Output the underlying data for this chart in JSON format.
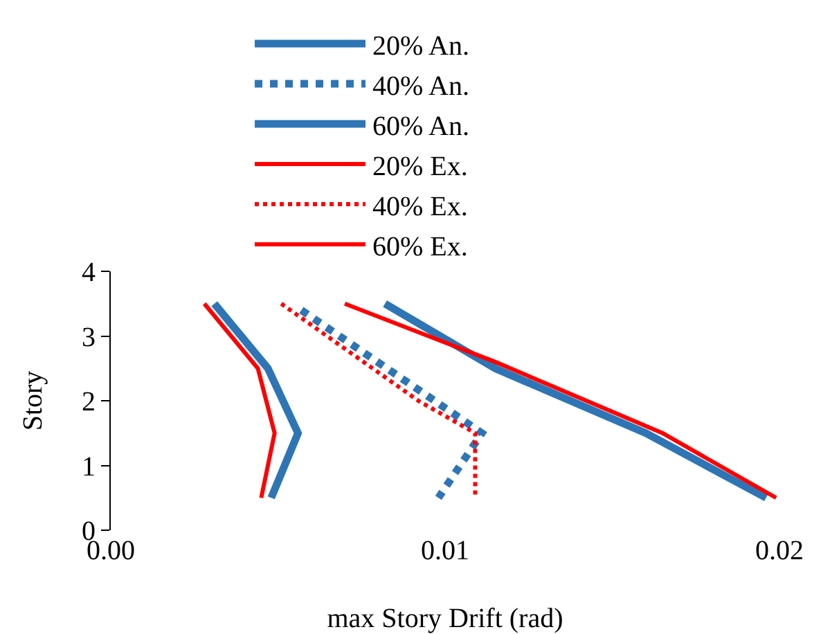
{
  "chart_data": {
    "type": "line",
    "xlabel": "max Story Drift (rad)",
    "ylabel": "Story",
    "xlim": [
      0,
      0.02
    ],
    "xticks": [
      {
        "value": 0,
        "label": "0.00"
      },
      {
        "value": 0.01,
        "label": "0.01"
      },
      {
        "value": 0.02,
        "label": "0.02"
      }
    ],
    "ylim": [
      0,
      4
    ],
    "yticks": [
      0,
      1,
      2,
      3,
      4
    ],
    "grid": false,
    "legend": "top",
    "marker": "none",
    "series": [
      {
        "name": "20% An.",
        "color": "#2e75b6",
        "line_style": "solid",
        "x": [
          0.0031,
          0.0047,
          0.0056,
          0.0048
        ],
        "values": [
          3.5,
          2.5,
          1.5,
          0.5
        ]
      },
      {
        "name": "40% An.",
        "color": "#2e75b6",
        "line_style": "dotted",
        "x": [
          0.0057,
          0.0094,
          0.0111,
          0.0098
        ],
        "values": [
          3.4,
          2.1,
          1.5,
          0.5
        ]
      },
      {
        "name": "60% An.",
        "color": "#2e75b6",
        "line_style": "solid",
        "x": [
          0.0082,
          0.0115,
          0.016,
          0.0196
        ],
        "values": [
          3.5,
          2.5,
          1.5,
          0.5
        ]
      },
      {
        "name": "20% Ex.",
        "color": "#ff0000",
        "line_style": "solid",
        "x": [
          0.0028,
          0.0044,
          0.0049,
          0.0045
        ],
        "values": [
          3.5,
          2.5,
          1.5,
          0.5
        ]
      },
      {
        "name": "40% Ex.",
        "color": "#ff0000",
        "line_style": "dotted",
        "x": [
          0.0051,
          0.0092,
          0.0109,
          0.0109
        ],
        "values": [
          3.5,
          2.0,
          1.5,
          0.5
        ]
      },
      {
        "name": "60% Ex.",
        "color": "#ff0000",
        "line_style": "solid",
        "x": [
          0.007,
          0.0115,
          0.0165,
          0.0199
        ],
        "values": [
          3.5,
          2.6,
          1.5,
          0.5
        ]
      }
    ]
  }
}
